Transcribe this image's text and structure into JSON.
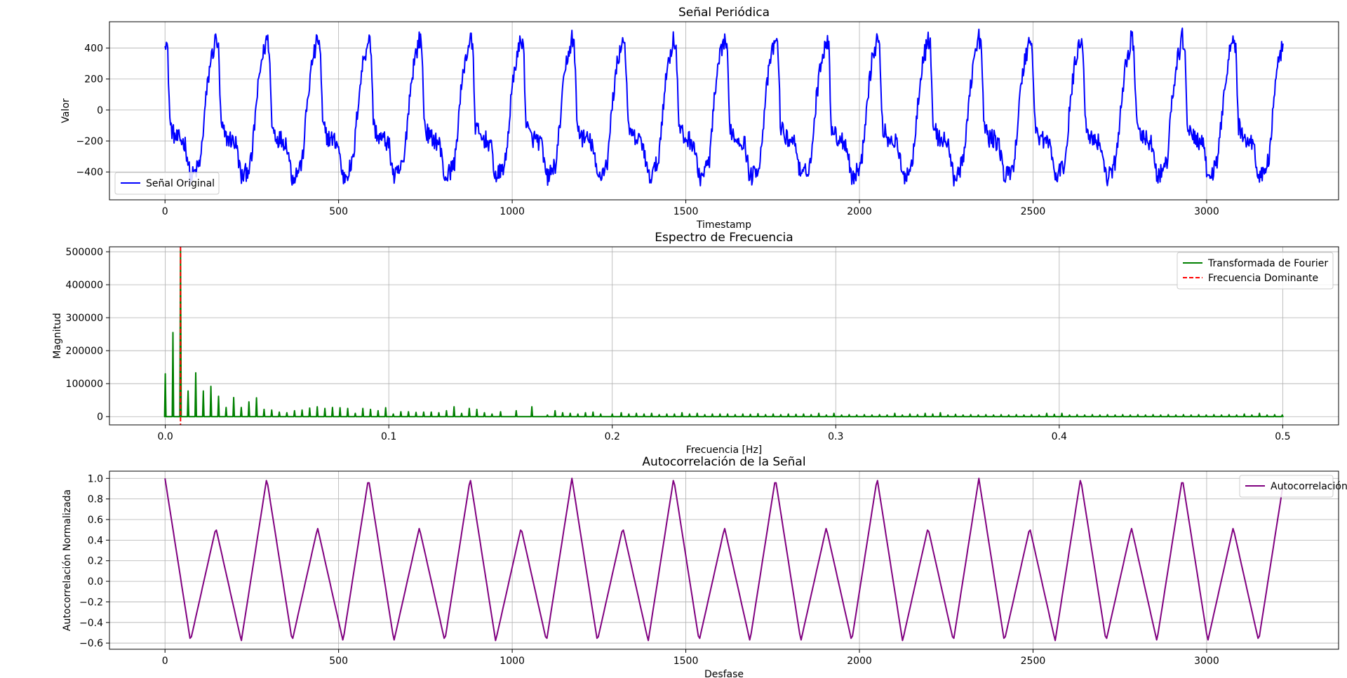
{
  "chart_data": [
    {
      "type": "line",
      "title": "Señal Periódica",
      "xlabel": "Timestamp",
      "ylabel": "Valor",
      "xlim": [
        -160,
        3380
      ],
      "ylim": [
        -580,
        570
      ],
      "xticks": [
        0,
        500,
        1000,
        1500,
        2000,
        2500,
        3000
      ],
      "xtick_labels": [
        "0",
        "500",
        "1000",
        "1500",
        "2000",
        "2500",
        "3000"
      ],
      "yticks": [
        -400,
        -200,
        0,
        200,
        400
      ],
      "ytick_labels": [
        "−400",
        "−200",
        "0",
        "200",
        "400"
      ],
      "grid": true,
      "legend": "lower-left",
      "series": [
        {
          "name": "Señal Original",
          "color": "#0000ff",
          "period": 146.5,
          "x_range": [
            0,
            3220
          ],
          "waveform_points": [
            {
              "phase": 0.0,
              "value": 470
            },
            {
              "phase": 0.05,
              "value": 400
            },
            {
              "phase": 0.1,
              "value": -100
            },
            {
              "phase": 0.2,
              "value": -180
            },
            {
              "phase": 0.3,
              "value": -190
            },
            {
              "phase": 0.4,
              "value": -220
            },
            {
              "phase": 0.5,
              "value": -440
            },
            {
              "phase": 0.6,
              "value": -400
            },
            {
              "phase": 0.7,
              "value": -330
            },
            {
              "phase": 0.8,
              "value": 60
            },
            {
              "phase": 0.9,
              "value": 330
            },
            {
              "phase": 0.95,
              "value": 380
            },
            {
              "phase": 1.0,
              "value": 470
            }
          ],
          "noise_amplitude": 60
        }
      ]
    },
    {
      "type": "line",
      "title": "Espectro de Frecuencia",
      "xlabel": "Frecuencia [Hz]",
      "ylabel": "Magnitud",
      "xlim": [
        -0.025,
        0.525
      ],
      "ylim": [
        -25000,
        515000
      ],
      "xticks": [
        0.0,
        0.1,
        0.2,
        0.3,
        0.4,
        0.5
      ],
      "xtick_labels": [
        "0.0",
        "0.1",
        "0.2",
        "0.3",
        "0.4",
        "0.5"
      ],
      "yticks": [
        0,
        100000,
        200000,
        300000,
        400000,
        500000
      ],
      "ytick_labels": [
        "0",
        "100000",
        "200000",
        "300000",
        "400000",
        "500000"
      ],
      "grid": true,
      "legend": "upper-right",
      "series": [
        {
          "name": "Transformada de Fourier",
          "color": "#008000",
          "frequencies": [
            0.0,
            0.0034,
            0.0068,
            0.0102,
            0.0136,
            0.017,
            0.0204,
            0.0238,
            0.0272,
            0.0306,
            0.034,
            0.0374,
            0.0408,
            0.0442,
            0.0476,
            0.051,
            0.0544,
            0.0578,
            0.0612,
            0.0646,
            0.068,
            0.0714,
            0.0748,
            0.0782,
            0.0816,
            0.085,
            0.0884,
            0.0918,
            0.0952,
            0.0986,
            0.102,
            0.1054,
            0.1088,
            0.1122,
            0.1156,
            0.119,
            0.1224,
            0.1258,
            0.1292,
            0.1326,
            0.136,
            0.1394,
            0.1428,
            0.1462,
            0.15,
            0.157,
            0.164,
            0.171,
            0.1744,
            0.1778,
            0.1812,
            0.1846,
            0.188,
            0.1914,
            0.1948,
            0.2,
            0.204,
            0.2074,
            0.2108,
            0.2142,
            0.2176,
            0.221,
            0.2244,
            0.2278,
            0.2312,
            0.2346,
            0.238,
            0.2414,
            0.2448,
            0.2482,
            0.2516,
            0.255,
            0.2584,
            0.2618,
            0.2652,
            0.2686,
            0.272,
            0.2754,
            0.2788,
            0.2822,
            0.2856,
            0.289,
            0.2924,
            0.2958,
            0.2992,
            0.3026,
            0.306,
            0.3094,
            0.3128,
            0.3162,
            0.3196,
            0.323,
            0.3264,
            0.3298,
            0.3332,
            0.3366,
            0.34,
            0.3434,
            0.3468,
            0.3502,
            0.3536,
            0.357,
            0.3604,
            0.3638,
            0.3672,
            0.3706,
            0.374,
            0.3774,
            0.3808,
            0.3842,
            0.3876,
            0.391,
            0.3944,
            0.3978,
            0.4012,
            0.4046,
            0.408,
            0.4114,
            0.4148,
            0.4182,
            0.4216,
            0.425,
            0.4284,
            0.4318,
            0.4352,
            0.4386,
            0.442,
            0.4454,
            0.4488,
            0.4522,
            0.4556,
            0.459,
            0.4624,
            0.4658,
            0.4692,
            0.4726,
            0.476,
            0.4794,
            0.4828,
            0.4862,
            0.4896,
            0.493,
            0.4964,
            0.4998
          ],
          "magnitudes": [
            130000,
            255000,
            505000,
            78000,
            133000,
            78000,
            92000,
            62000,
            28000,
            58000,
            28000,
            45000,
            57000,
            22000,
            20000,
            14000,
            12000,
            18000,
            20000,
            26000,
            30000,
            25000,
            28000,
            27000,
            25000,
            10000,
            25000,
            22000,
            18000,
            27000,
            8000,
            15000,
            15000,
            13000,
            14000,
            14000,
            12000,
            18000,
            30000,
            10000,
            25000,
            22000,
            12000,
            8000,
            15000,
            18000,
            30000,
            5000,
            18000,
            12000,
            10000,
            8000,
            12000,
            14000,
            8000,
            8000,
            12000,
            8000,
            10000,
            8000,
            10000,
            6000,
            8000,
            8000,
            12000,
            8000,
            10000,
            6000,
            8000,
            8000,
            8000,
            6000,
            8000,
            7000,
            9000,
            6000,
            8000,
            6000,
            8000,
            7000,
            8000,
            6000,
            10000,
            5000,
            10000,
            5000,
            6000,
            5000,
            6000,
            5000,
            6000,
            5000,
            10000,
            5000,
            8000,
            6000,
            10000,
            8000,
            12000,
            5000,
            7000,
            5000,
            6000,
            5000,
            6000,
            5000,
            6000,
            5000,
            6000,
            5000,
            6000,
            5000,
            10000,
            7000,
            10000,
            5000,
            6000,
            5000,
            6000,
            5000,
            6000,
            5000,
            6000,
            5000,
            6000,
            5000,
            6000,
            5000,
            6000,
            5000,
            6000,
            5000,
            6000,
            5000,
            6000,
            5000,
            6000,
            5000,
            8000,
            5000,
            10000,
            5000,
            6000,
            5000
          ]
        },
        {
          "name": "Frecuencia Dominante",
          "color": "#ff0000",
          "style": "dashed",
          "x": 0.0068
        }
      ]
    },
    {
      "type": "line",
      "title": "Autocorrelación de la Señal",
      "xlabel": "Desfase",
      "ylabel": "Autocorrelación Normalizada",
      "xlim": [
        -160,
        3380
      ],
      "ylim": [
        -0.66,
        1.07
      ],
      "xticks": [
        0,
        500,
        1000,
        1500,
        2000,
        2500,
        3000
      ],
      "xtick_labels": [
        "0",
        "500",
        "1000",
        "1500",
        "2000",
        "2500",
        "3000"
      ],
      "yticks": [
        -0.6,
        -0.4,
        -0.2,
        0.0,
        0.2,
        0.4,
        0.6,
        0.8,
        1.0
      ],
      "ytick_labels": [
        "−0.6",
        "−0.4",
        "−0.2",
        "0.0",
        "0.2",
        "0.4",
        "0.6",
        "0.8",
        "1.0"
      ],
      "grid": true,
      "legend": "upper-right",
      "series": [
        {
          "name": "Autocorrelación",
          "color": "#800080",
          "period": 293,
          "x_range": [
            0,
            3220
          ],
          "waveform_points": [
            {
              "phase": 0.0,
              "value": 1.0
            },
            {
              "phase": 0.25,
              "value": -0.58
            },
            {
              "phase": 0.5,
              "value": 0.52
            },
            {
              "phase": 0.75,
              "value": -0.58
            },
            {
              "phase": 1.0,
              "value": 1.0
            }
          ]
        }
      ]
    }
  ]
}
